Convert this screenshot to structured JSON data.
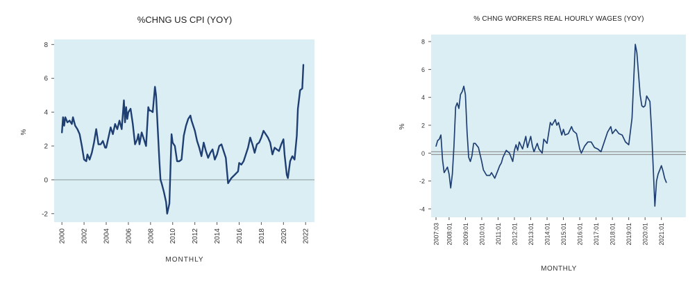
{
  "chart_data": [
    {
      "type": "line",
      "title": "%CHNG US CPI (YOY)",
      "xlabel": "MONTHLY",
      "ylabel": "%",
      "xlim": [
        1999.3,
        2022.8
      ],
      "ylim": [
        -2.5,
        8.3
      ],
      "yticks": [
        8,
        6,
        4,
        2,
        0,
        -2
      ],
      "xticks": [
        "2000",
        "2002",
        "2004",
        "2006",
        "2008",
        "2010",
        "2012",
        "2014",
        "2016",
        "2018",
        "2020",
        "2022"
      ],
      "xtick_values": [
        2000,
        2002,
        2004,
        2006,
        2008,
        2010,
        2012,
        2014,
        2016,
        2018,
        2020,
        2022
      ],
      "reference_lines": [
        0
      ],
      "background": "#daeef3",
      "line_color": "#1f3f73",
      "grid": false,
      "series": [
        {
          "x": [
            2000.0,
            2000.1,
            2000.2,
            2000.3,
            2000.5,
            2000.7,
            2000.9,
            2001.0,
            2001.2,
            2001.4,
            2001.6,
            2001.8,
            2001.9,
            2002.0,
            2002.2,
            2002.3,
            2002.5,
            2002.7,
            2002.9,
            2003.0,
            2003.1,
            2003.3,
            2003.5,
            2003.7,
            2003.9,
            2004.0,
            2004.2,
            2004.4,
            2004.6,
            2004.8,
            2005.0,
            2005.2,
            2005.4,
            2005.6,
            2005.7,
            2005.8,
            2005.9,
            2006.0,
            2006.2,
            2006.4,
            2006.6,
            2006.8,
            2006.9,
            2007.0,
            2007.2,
            2007.4,
            2007.6,
            2007.8,
            2007.9,
            2008.0,
            2008.2,
            2008.4,
            2008.5,
            2008.6,
            2008.8,
            2008.9,
            2009.0,
            2009.2,
            2009.4,
            2009.5,
            2009.7,
            2009.9,
            2010.0,
            2010.2,
            2010.4,
            2010.6,
            2010.8,
            2011.0,
            2011.2,
            2011.4,
            2011.6,
            2011.7,
            2012.0,
            2012.2,
            2012.4,
            2012.6,
            2012.8,
            2013.0,
            2013.2,
            2013.4,
            2013.6,
            2013.8,
            2014.0,
            2014.2,
            2014.4,
            2014.6,
            2014.8,
            2015.0,
            2015.3,
            2015.6,
            2015.9,
            2016.0,
            2016.2,
            2016.4,
            2016.6,
            2016.8,
            2017.0,
            2017.2,
            2017.4,
            2017.6,
            2017.8,
            2018.0,
            2018.2,
            2018.4,
            2018.6,
            2018.8,
            2019.0,
            2019.2,
            2019.4,
            2019.6,
            2019.8,
            2020.0,
            2020.1,
            2020.3,
            2020.4,
            2020.6,
            2020.8,
            2021.0,
            2021.2,
            2021.3,
            2021.5,
            2021.7,
            2021.8
          ],
          "y": [
            2.8,
            3.7,
            3.2,
            3.7,
            3.4,
            3.5,
            3.3,
            3.7,
            3.2,
            3.0,
            2.7,
            2.0,
            1.6,
            1.2,
            1.1,
            1.5,
            1.2,
            1.6,
            2.2,
            2.6,
            3.0,
            2.1,
            2.1,
            2.3,
            1.9,
            1.9,
            2.5,
            3.1,
            2.7,
            3.3,
            3.0,
            3.5,
            3.0,
            4.7,
            3.4,
            4.3,
            3.6,
            4.0,
            4.2,
            3.3,
            2.1,
            2.4,
            2.7,
            2.1,
            2.8,
            2.4,
            2.0,
            4.3,
            4.1,
            4.1,
            4.0,
            5.5,
            5.0,
            3.7,
            1.1,
            0.0,
            -0.2,
            -0.7,
            -1.3,
            -2.0,
            -1.4,
            2.7,
            2.2,
            2.0,
            1.1,
            1.1,
            1.2,
            2.6,
            3.2,
            3.6,
            3.8,
            3.5,
            2.9,
            2.3,
            1.9,
            1.4,
            2.2,
            1.7,
            1.3,
            1.6,
            1.8,
            1.2,
            1.5,
            2.0,
            2.1,
            1.7,
            1.3,
            -0.2,
            0.1,
            0.3,
            0.5,
            1.0,
            0.9,
            1.1,
            1.5,
            1.9,
            2.5,
            2.1,
            1.6,
            2.1,
            2.2,
            2.5,
            2.9,
            2.7,
            2.5,
            2.2,
            1.5,
            1.9,
            1.8,
            1.7,
            2.1,
            2.4,
            1.5,
            0.3,
            0.1,
            1.1,
            1.4,
            1.2,
            2.6,
            4.2,
            5.3,
            5.4,
            6.8
          ]
        }
      ]
    },
    {
      "type": "line",
      "title": "% CHNG WORKERS REAL HOURLY WAGES (YOY)",
      "xlabel": "MONTHLY",
      "ylabel": "%",
      "xlim": [
        2006.9,
        2022.5
      ],
      "ylim": [
        -4.6,
        8.5
      ],
      "yticks": [
        8,
        6,
        4,
        2,
        0,
        -2,
        -4
      ],
      "xticks": [
        "2007:03",
        "2008:01",
        "2009:01",
        "2010:01",
        "2011:01",
        "2012:01",
        "2013:01",
        "2014:01",
        "2015:01",
        "2016:01",
        "2017:01",
        "2018:01",
        "2019:01",
        "2020:01",
        "2021:01"
      ],
      "xtick_values": [
        2007.2,
        2008.0,
        2009.0,
        2010.0,
        2011.0,
        2012.0,
        2013.0,
        2014.0,
        2015.0,
        2016.0,
        2017.0,
        2018.0,
        2019.0,
        2020.0,
        2021.0
      ],
      "reference_lines": [
        0
      ],
      "background": "#daeef3",
      "line_color": "#1f3f73",
      "grid": false,
      "series": [
        {
          "x": [
            2007.2,
            2007.3,
            2007.4,
            2007.5,
            2007.6,
            2007.7,
            2007.8,
            2007.9,
            2008.0,
            2008.1,
            2008.2,
            2008.3,
            2008.4,
            2008.5,
            2008.6,
            2008.7,
            2008.8,
            2008.9,
            2009.0,
            2009.1,
            2009.2,
            2009.3,
            2009.4,
            2009.5,
            2009.6,
            2009.8,
            2010.0,
            2010.1,
            2010.3,
            2010.5,
            2010.6,
            2010.8,
            2011.0,
            2011.1,
            2011.2,
            2011.3,
            2011.5,
            2011.7,
            2011.9,
            2012.0,
            2012.1,
            2012.2,
            2012.3,
            2012.5,
            2012.7,
            2012.8,
            2013.0,
            2013.1,
            2013.2,
            2013.4,
            2013.5,
            2013.7,
            2013.8,
            2014.0,
            2014.2,
            2014.3,
            2014.5,
            2014.6,
            2014.7,
            2014.9,
            2015.0,
            2015.1,
            2015.3,
            2015.5,
            2015.6,
            2015.8,
            2016.0,
            2016.1,
            2016.3,
            2016.5,
            2016.7,
            2016.9,
            2017.1,
            2017.3,
            2017.5,
            2017.7,
            2017.9,
            2018.0,
            2018.2,
            2018.4,
            2018.6,
            2018.8,
            2019.0,
            2019.2,
            2019.4,
            2019.5,
            2019.7,
            2019.8,
            2019.9,
            2020.0,
            2020.1,
            2020.3,
            2020.4,
            2020.5,
            2020.6,
            2020.7,
            2020.8,
            2020.9,
            2021.0,
            2021.1,
            2021.2,
            2021.3
          ],
          "y": [
            0.5,
            0.9,
            1.0,
            1.3,
            -0.5,
            -1.4,
            -1.2,
            -1.0,
            -1.5,
            -2.5,
            -1.5,
            0.5,
            3.3,
            3.6,
            3.2,
            4.2,
            4.4,
            4.8,
            4.2,
            1.5,
            -0.3,
            -0.6,
            -0.2,
            0.7,
            0.7,
            0.4,
            -0.6,
            -1.2,
            -1.6,
            -1.6,
            -1.4,
            -1.8,
            -1.2,
            -0.9,
            -0.7,
            -0.3,
            0.2,
            0.0,
            -0.6,
            0.2,
            0.6,
            0.2,
            0.8,
            0.3,
            1.2,
            0.4,
            1.2,
            0.5,
            0.1,
            0.7,
            0.3,
            0.0,
            1.0,
            0.7,
            2.2,
            2.0,
            2.4,
            2.0,
            2.2,
            1.3,
            1.7,
            1.3,
            1.4,
            1.9,
            1.6,
            1.4,
            0.3,
            0.0,
            0.5,
            0.8,
            0.8,
            0.4,
            0.3,
            0.1,
            0.8,
            1.5,
            1.9,
            1.4,
            1.7,
            1.4,
            1.3,
            0.8,
            0.6,
            2.5,
            7.8,
            7.2,
            4.2,
            3.4,
            3.3,
            3.4,
            4.1,
            3.7,
            1.6,
            -1.0,
            -3.8,
            -2.0,
            -1.5,
            -1.2,
            -0.9,
            -1.3,
            -1.8,
            -2.1
          ]
        }
      ]
    }
  ]
}
